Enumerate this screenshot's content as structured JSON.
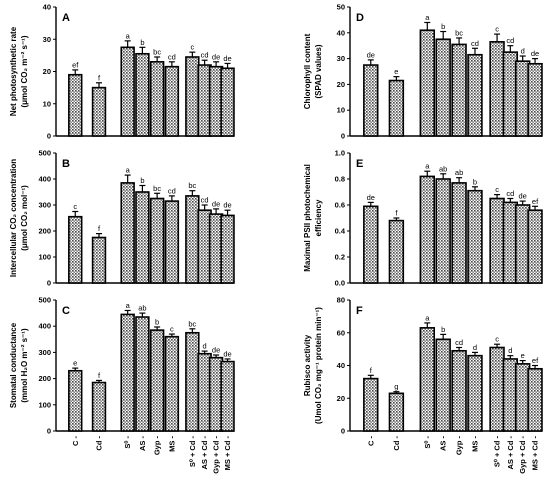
{
  "categories": [
    "C",
    "Cd",
    "S⁰",
    "AS",
    "Gyp",
    "MS",
    "S⁰ + Cd",
    "AS + Cd",
    "Gyp + Cd",
    "MS + Cd"
  ],
  "colors": {
    "bar_pattern": "#4a4a4a",
    "bar_background": "#ffffff",
    "axis": "#000000"
  },
  "chart_data": [
    {
      "type": "bar",
      "panel": "A",
      "ylabel": [
        "Net photosynthetic rate",
        "(μmol CO₂ m⁻² s⁻¹)"
      ],
      "ylim": [
        0,
        40
      ],
      "yticks": [
        0,
        10,
        20,
        30,
        40
      ],
      "values": [
        19,
        15,
        27.5,
        25.5,
        23,
        21.5,
        24.5,
        22,
        21.5,
        21
      ],
      "errors": [
        1.5,
        1.5,
        2,
        2,
        1.5,
        1.5,
        1.5,
        1.5,
        1.5,
        1.5
      ],
      "letters": [
        "ef",
        "f",
        "a",
        "b",
        "bc",
        "cd",
        "c",
        "cd",
        "de",
        "de"
      ]
    },
    {
      "type": "bar",
      "panel": "B",
      "ylabel": [
        "Intercellular CO₂ concentration",
        "(μmol CO₂ mol⁻¹)"
      ],
      "ylim": [
        0,
        500
      ],
      "yticks": [
        0,
        100,
        200,
        300,
        400,
        500
      ],
      "values": [
        255,
        175,
        385,
        350,
        325,
        315,
        335,
        280,
        265,
        260
      ],
      "errors": [
        20,
        15,
        30,
        25,
        20,
        20,
        20,
        20,
        20,
        20
      ],
      "letters": [
        "c",
        "f",
        "a",
        "b",
        "bc",
        "cd",
        "bc",
        "cd",
        "de",
        "de"
      ]
    },
    {
      "type": "bar",
      "panel": "C",
      "ylabel": [
        "Stomatal conductance",
        "(mmol H₂O m⁻² s⁻¹)"
      ],
      "ylim": [
        0,
        500
      ],
      "yticks": [
        0,
        100,
        200,
        300,
        400,
        500
      ],
      "values": [
        230,
        185,
        445,
        435,
        385,
        360,
        375,
        295,
        280,
        265
      ],
      "errors": [
        10,
        8,
        15,
        15,
        12,
        10,
        15,
        10,
        10,
        10
      ],
      "letters": [
        "e",
        "f",
        "a",
        "ab",
        "b",
        "c",
        "bc",
        "d",
        "de",
        "de"
      ]
    },
    {
      "type": "bar",
      "panel": "D",
      "ylabel": [
        "Chlorophyll content",
        "(SPAD values)"
      ],
      "ylim": [
        0,
        50
      ],
      "yticks": [
        0,
        10,
        20,
        30,
        40,
        50
      ],
      "values": [
        27.5,
        21.5,
        41,
        37.5,
        35.5,
        31.5,
        36.5,
        32.5,
        29,
        28
      ],
      "errors": [
        2,
        1.5,
        3,
        3,
        2.5,
        2.5,
        3,
        2.5,
        2,
        2
      ],
      "letters": [
        "de",
        "e",
        "a",
        "b",
        "bc",
        "cd",
        "c",
        "cd",
        "d",
        "de"
      ]
    },
    {
      "type": "bar",
      "panel": "E",
      "ylabel": [
        "Maximal PSII photochemical",
        "efficiency"
      ],
      "ylim": [
        0,
        1.0
      ],
      "yticks": [
        0,
        0.2,
        0.4,
        0.6,
        0.8,
        1.0
      ],
      "values": [
        0.59,
        0.48,
        0.82,
        0.8,
        0.77,
        0.71,
        0.65,
        0.62,
        0.6,
        0.56
      ],
      "errors": [
        0.03,
        0.02,
        0.04,
        0.04,
        0.04,
        0.03,
        0.03,
        0.03,
        0.03,
        0.03
      ],
      "letters": [
        "de",
        "f",
        "a",
        "ab",
        "ab",
        "b",
        "c",
        "cd",
        "de",
        "ef"
      ]
    },
    {
      "type": "bar",
      "panel": "F",
      "ylabel": [
        "Rubisco activity",
        "(Umol CO₂ mg⁻¹ protein min⁻¹)"
      ],
      "ylim": [
        0,
        80
      ],
      "yticks": [
        0,
        20,
        40,
        60,
        80
      ],
      "values": [
        32,
        23,
        63,
        56,
        49,
        46,
        51,
        44,
        41,
        38
      ],
      "errors": [
        2,
        1,
        3,
        3,
        2,
        2,
        2,
        2,
        2,
        2
      ],
      "letters": [
        "f",
        "g",
        "a",
        "b",
        "cd",
        "d",
        "c",
        "d",
        "e",
        "ef"
      ]
    }
  ]
}
